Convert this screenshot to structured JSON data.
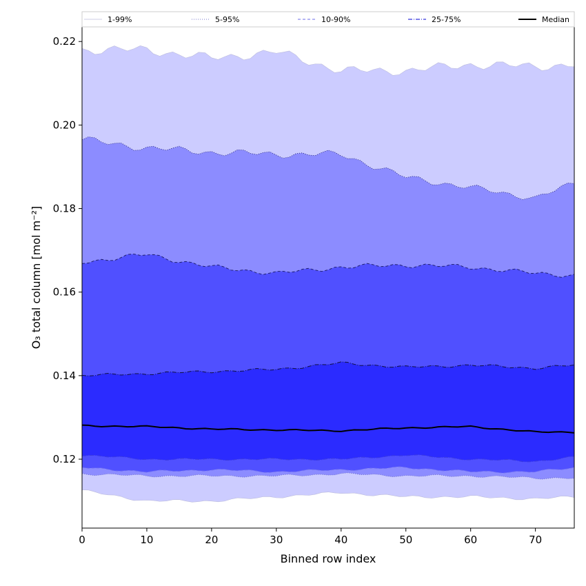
{
  "chart_data": {
    "type": "area",
    "xlabel": "Binned row index",
    "ylabel": "O₃ total column [mol m⁻²]",
    "xlim": [
      0,
      76
    ],
    "ylim": [
      0.1035,
      0.2235
    ],
    "xticks": [
      0,
      10,
      20,
      30,
      40,
      50,
      60,
      70
    ],
    "yticks": [
      0.12,
      0.14,
      0.16,
      0.18,
      0.2,
      0.22
    ],
    "ytick_labels": [
      "0.12",
      "0.14",
      "0.16",
      "0.18",
      "0.20",
      "0.22"
    ],
    "grid": false,
    "legend_position": "top",
    "colors": {
      "band_1_99": "#ccccff",
      "band_5_95": "#8c8cff",
      "band_10_90": "#5050ff",
      "band_25_75": "#2b2bff",
      "median": "#000000"
    },
    "legend": [
      {
        "label": "1-99%",
        "style": "thin-line",
        "color": "#bbbbdd"
      },
      {
        "label": "5-95%",
        "style": "dotted",
        "color": "#7777cc"
      },
      {
        "label": "10-90%",
        "style": "dashed",
        "color": "#8888ee"
      },
      {
        "label": "25-75%",
        "style": "dashdot",
        "color": "#3333dd"
      },
      {
        "label": "Median",
        "style": "solid-thick",
        "color": "#000000"
      }
    ],
    "x_knots": [
      0,
      10,
      20,
      30,
      40,
      50,
      60,
      70,
      76
    ],
    "series": [
      {
        "name": "1%",
        "values": [
          0.1125,
          0.11,
          0.11,
          0.111,
          0.112,
          0.111,
          0.111,
          0.1105,
          0.111
        ]
      },
      {
        "name": "5%",
        "values": [
          0.1165,
          0.116,
          0.116,
          0.116,
          0.1165,
          0.116,
          0.116,
          0.1155,
          0.1155
        ]
      },
      {
        "name": "10%",
        "values": [
          0.118,
          0.117,
          0.1175,
          0.117,
          0.1175,
          0.118,
          0.117,
          0.117,
          0.118
        ]
      },
      {
        "name": "25%",
        "values": [
          0.121,
          0.12,
          0.12,
          0.12,
          0.12,
          0.121,
          0.12,
          0.1195,
          0.1205
        ]
      },
      {
        "name": "Median",
        "values": [
          0.128,
          0.1278,
          0.1272,
          0.127,
          0.1268,
          0.1275,
          0.1278,
          0.1265,
          0.1265
        ]
      },
      {
        "name": "75%",
        "values": [
          0.14,
          0.1405,
          0.141,
          0.1415,
          0.143,
          0.142,
          0.1425,
          0.1418,
          0.1425
        ]
      },
      {
        "name": "90%",
        "values": [
          0.1672,
          0.169,
          0.166,
          0.1645,
          0.166,
          0.1665,
          0.166,
          0.1645,
          0.164
        ]
      },
      {
        "name": "95%",
        "values": [
          0.1965,
          0.1945,
          0.1935,
          0.193,
          0.193,
          0.1875,
          0.185,
          0.1825,
          0.186
        ]
      },
      {
        "name": "99%",
        "values": [
          0.218,
          0.218,
          0.216,
          0.2175,
          0.213,
          0.213,
          0.2145,
          0.214,
          0.2145
        ]
      }
    ]
  }
}
